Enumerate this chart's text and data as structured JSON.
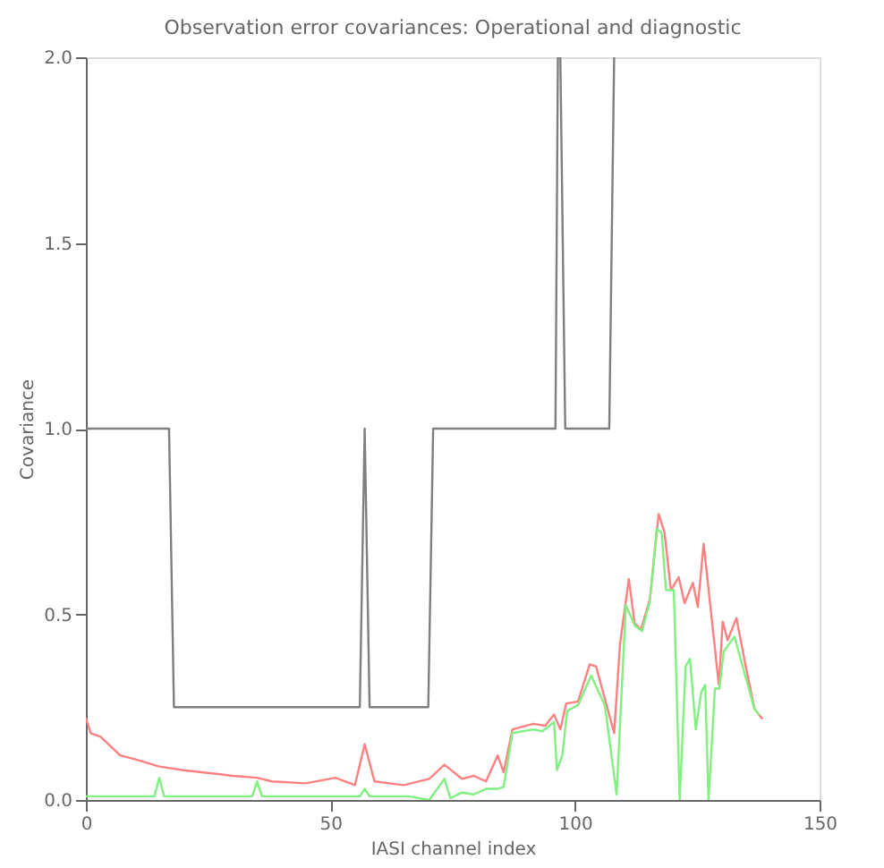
{
  "chart_data": {
    "type": "line",
    "title": "Observation error covariances: Operational and diagnostic",
    "xlabel": "IASI channel index",
    "ylabel": "Covariance",
    "xlim": [
      0,
      150
    ],
    "xticks": [
      0,
      50,
      100,
      150
    ],
    "ylim": [
      0,
      2.0
    ],
    "yticks": [
      {
        "value": 0,
        "label": "0.0"
      },
      {
        "value": 0.5,
        "label": "0.5"
      },
      {
        "value": 1.0,
        "label": "1.0"
      },
      {
        "value": 1.5,
        "label": "1.5"
      },
      {
        "value": 2.0,
        "label": "2.0"
      }
    ],
    "grid": false,
    "marker": "none",
    "line_style": "solid",
    "series": [
      {
        "color": "#7f7f7f",
        "x": [
          0,
          17,
          18,
          56,
          57,
          58,
          70,
          71,
          96,
          96.5,
          97,
          98,
          107,
          108
        ],
        "values": [
          1.0,
          1.0,
          0.25,
          0.25,
          1.0,
          0.25,
          0.25,
          1.0,
          1.0,
          2.0,
          2.0,
          1.0,
          1.0,
          2.0
        ]
      },
      {
        "color": "#ff8080",
        "x": [
          0,
          1,
          3,
          7,
          10,
          15,
          20,
          27,
          30,
          35,
          38,
          45,
          51,
          55,
          57,
          59,
          65,
          70.2,
          73.3,
          76.9,
          79.3,
          81.8,
          84.2,
          85.4,
          87.2,
          91.5,
          93.9,
          95.7,
          97,
          98.2,
          100.6,
          103,
          104.3,
          108,
          109.2,
          111,
          112.2,
          113.5,
          115.3,
          117.1,
          118.3,
          119.6,
          121.2,
          122.4,
          124.1,
          125.1,
          126.3,
          129.4,
          130.2,
          131.2,
          133,
          134.9,
          136.7,
          138.2
        ],
        "values": [
          0.22,
          0.18,
          0.17,
          0.12,
          0.11,
          0.09,
          0.08,
          0.07,
          0.065,
          0.06,
          0.05,
          0.045,
          0.06,
          0.04,
          0.15,
          0.05,
          0.04,
          0.057,
          0.095,
          0.057,
          0.065,
          0.05,
          0.12,
          0.075,
          0.19,
          0.205,
          0.2,
          0.23,
          0.19,
          0.26,
          0.265,
          0.365,
          0.36,
          0.18,
          0.42,
          0.595,
          0.475,
          0.46,
          0.54,
          0.77,
          0.72,
          0.565,
          0.6,
          0.53,
          0.585,
          0.52,
          0.69,
          0.31,
          0.48,
          0.43,
          0.49,
          0.36,
          0.245,
          0.22
        ]
      },
      {
        "color": "#80f080",
        "x": [
          0,
          14,
          15,
          16,
          34,
          35,
          36,
          56,
          57,
          58,
          66,
          70.2,
          73.3,
          74.5,
          76.9,
          79.3,
          81.8,
          84.2,
          85.4,
          87.2,
          91.5,
          93.3,
          95.7,
          96.3,
          97.4,
          98.4,
          100.6,
          103.3,
          106.1,
          108.5,
          110.4,
          112.2,
          113.7,
          115.3,
          116.7,
          117.7,
          118.6,
          120.2,
          121.4,
          122.6,
          123.5,
          124.7,
          125.8,
          126.6,
          127.3,
          128.6,
          129.5,
          130.4,
          132.6,
          134.9,
          136.7,
          137.6
        ],
        "values": [
          0.01,
          0.01,
          0.06,
          0.01,
          0.01,
          0.05,
          0.01,
          0.01,
          0.03,
          0.01,
          0.01,
          0.0,
          0.057,
          0.005,
          0.02,
          0.015,
          0.03,
          0.03,
          0.035,
          0.18,
          0.19,
          0.185,
          0.21,
          0.08,
          0.12,
          0.24,
          0.255,
          0.335,
          0.255,
          0.015,
          0.525,
          0.47,
          0.455,
          0.535,
          0.73,
          0.72,
          0.565,
          0.565,
          0.0,
          0.36,
          0.38,
          0.19,
          0.29,
          0.31,
          0.0,
          0.3,
          0.3,
          0.4,
          0.44,
          0.33,
          0.245,
          0.23
        ]
      }
    ]
  }
}
